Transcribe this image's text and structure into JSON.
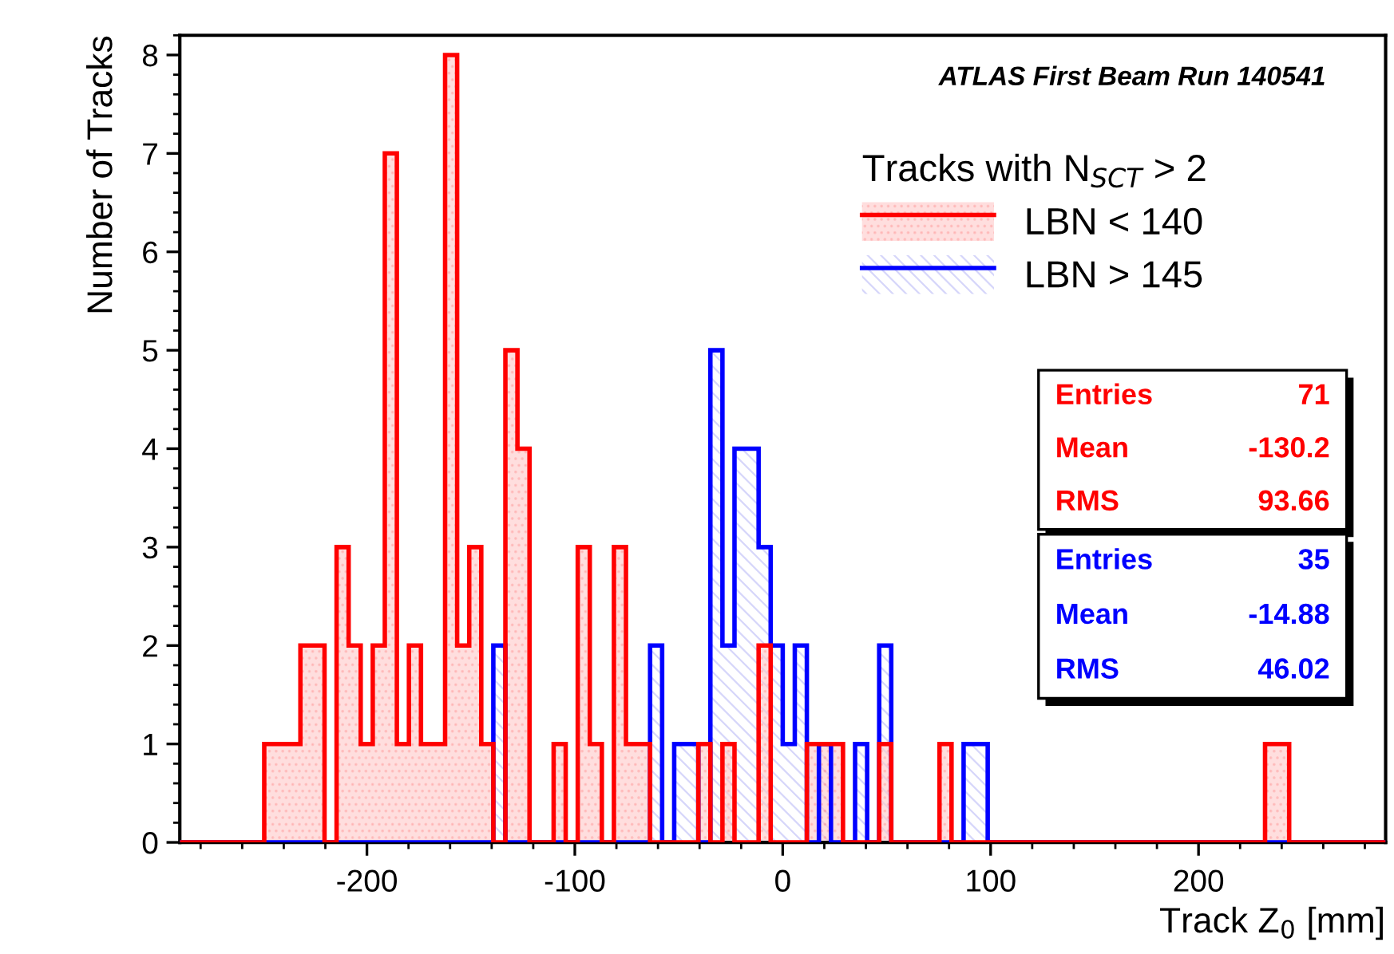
{
  "chart_data": {
    "type": "histogram",
    "xlabel": "Track Z$_{0}$ [mm]",
    "ylabel": "Number of Tracks",
    "legend_title": "Tracks with N$_{SCT}$ > 2",
    "annotations": [
      "ATLAS First Beam Run 140541",
      "Entries",
      "71",
      "Mean",
      "-130.2",
      "RMS",
      "93.66",
      "Entries",
      "35",
      "Mean",
      "-14.88",
      "RMS",
      "46.02"
    ],
    "bins": [
      -290,
      -284.2,
      -278.4,
      -272.6,
      -266.8,
      -261,
      -255.2,
      -249.4,
      -243.6,
      -237.8,
      -232,
      -226.2,
      -220.4,
      -214.6,
      -208.8,
      -203,
      -197.2,
      -191.4,
      -185.6,
      -179.8,
      -174,
      -168.2,
      -162.4,
      -156.6,
      -150.8,
      -145,
      -139.2,
      -133.4,
      -127.6,
      -121.8,
      -116,
      -110.2,
      -104.4,
      -98.6,
      -92.8,
      -87,
      -81.2,
      -75.4,
      -69.6,
      -63.8,
      -58,
      -52.2,
      -46.4,
      -40.6,
      -34.8,
      -29,
      -23.2,
      -17.4,
      -11.6,
      -5.8,
      0,
      5.8,
      11.6,
      17.4,
      23.2,
      29,
      34.8,
      40.6,
      46.4,
      52.2,
      58,
      63.8,
      69.6,
      75.4,
      81.2,
      87,
      92.8,
      98.6,
      104.4,
      110.2,
      116,
      121.8,
      127.6,
      133.4,
      139.2,
      145,
      150.8,
      156.6,
      162.4,
      168.2,
      174,
      179.8,
      185.6,
      191.4,
      197.2,
      203,
      208.8,
      214.6,
      220.4,
      226.2,
      232,
      237.8,
      243.6,
      249.4,
      255.2,
      261,
      266.8,
      272.6,
      278.4,
      284.2,
      290
    ],
    "series": [
      {
        "name": "LBN < 140",
        "color": "#ff0000",
        "values": [
          0,
          0,
          0,
          0,
          0,
          0,
          0,
          1,
          1,
          1,
          2,
          2,
          0,
          3,
          2,
          1,
          2,
          7,
          1,
          2,
          1,
          1,
          8,
          2,
          3,
          1,
          0,
          5,
          4,
          0,
          0,
          1,
          0,
          3,
          1,
          0,
          3,
          1,
          1,
          0,
          0,
          0,
          0,
          1,
          0,
          1,
          0,
          0,
          2,
          0,
          0,
          0,
          1,
          1,
          1,
          0,
          0,
          0,
          1,
          0,
          0,
          0,
          0,
          1,
          0,
          0,
          0,
          0,
          0,
          0,
          0,
          0,
          0,
          0,
          0,
          0,
          0,
          0,
          0,
          0,
          0,
          0,
          0,
          0,
          0,
          0,
          0,
          0,
          0,
          0,
          1,
          1,
          0,
          0,
          0,
          0,
          0,
          0,
          0,
          0
        ]
      },
      {
        "name": "LBN > 145",
        "color": "#0000ff",
        "values": [
          0,
          0,
          0,
          0,
          0,
          0,
          0,
          0,
          0,
          0,
          0,
          0,
          0,
          0,
          0,
          0,
          0,
          0,
          0,
          0,
          0,
          0,
          0,
          0,
          0,
          0,
          2,
          0,
          0,
          0,
          0,
          0,
          0,
          0,
          0,
          0,
          0,
          0,
          0,
          2,
          0,
          1,
          1,
          0,
          5,
          2,
          4,
          4,
          3,
          2,
          1,
          2,
          0,
          1,
          0,
          0,
          1,
          0,
          2,
          0,
          0,
          0,
          0,
          0,
          0,
          1,
          1,
          0,
          0,
          0,
          0,
          0,
          0,
          0,
          0,
          0,
          0,
          0,
          0,
          0,
          0,
          0,
          0,
          0,
          0,
          0,
          0,
          0,
          0,
          0,
          0,
          0,
          0,
          0,
          0,
          0,
          0,
          0,
          0,
          0
        ]
      }
    ],
    "xlim": [
      -290,
      290
    ],
    "ylim": [
      0,
      8.2
    ],
    "xticks": [
      -200,
      -100,
      0,
      100,
      200
    ],
    "yticks": [
      0,
      1,
      2,
      3,
      4,
      5,
      6,
      7,
      8
    ],
    "grid": false,
    "legend": "top right"
  }
}
